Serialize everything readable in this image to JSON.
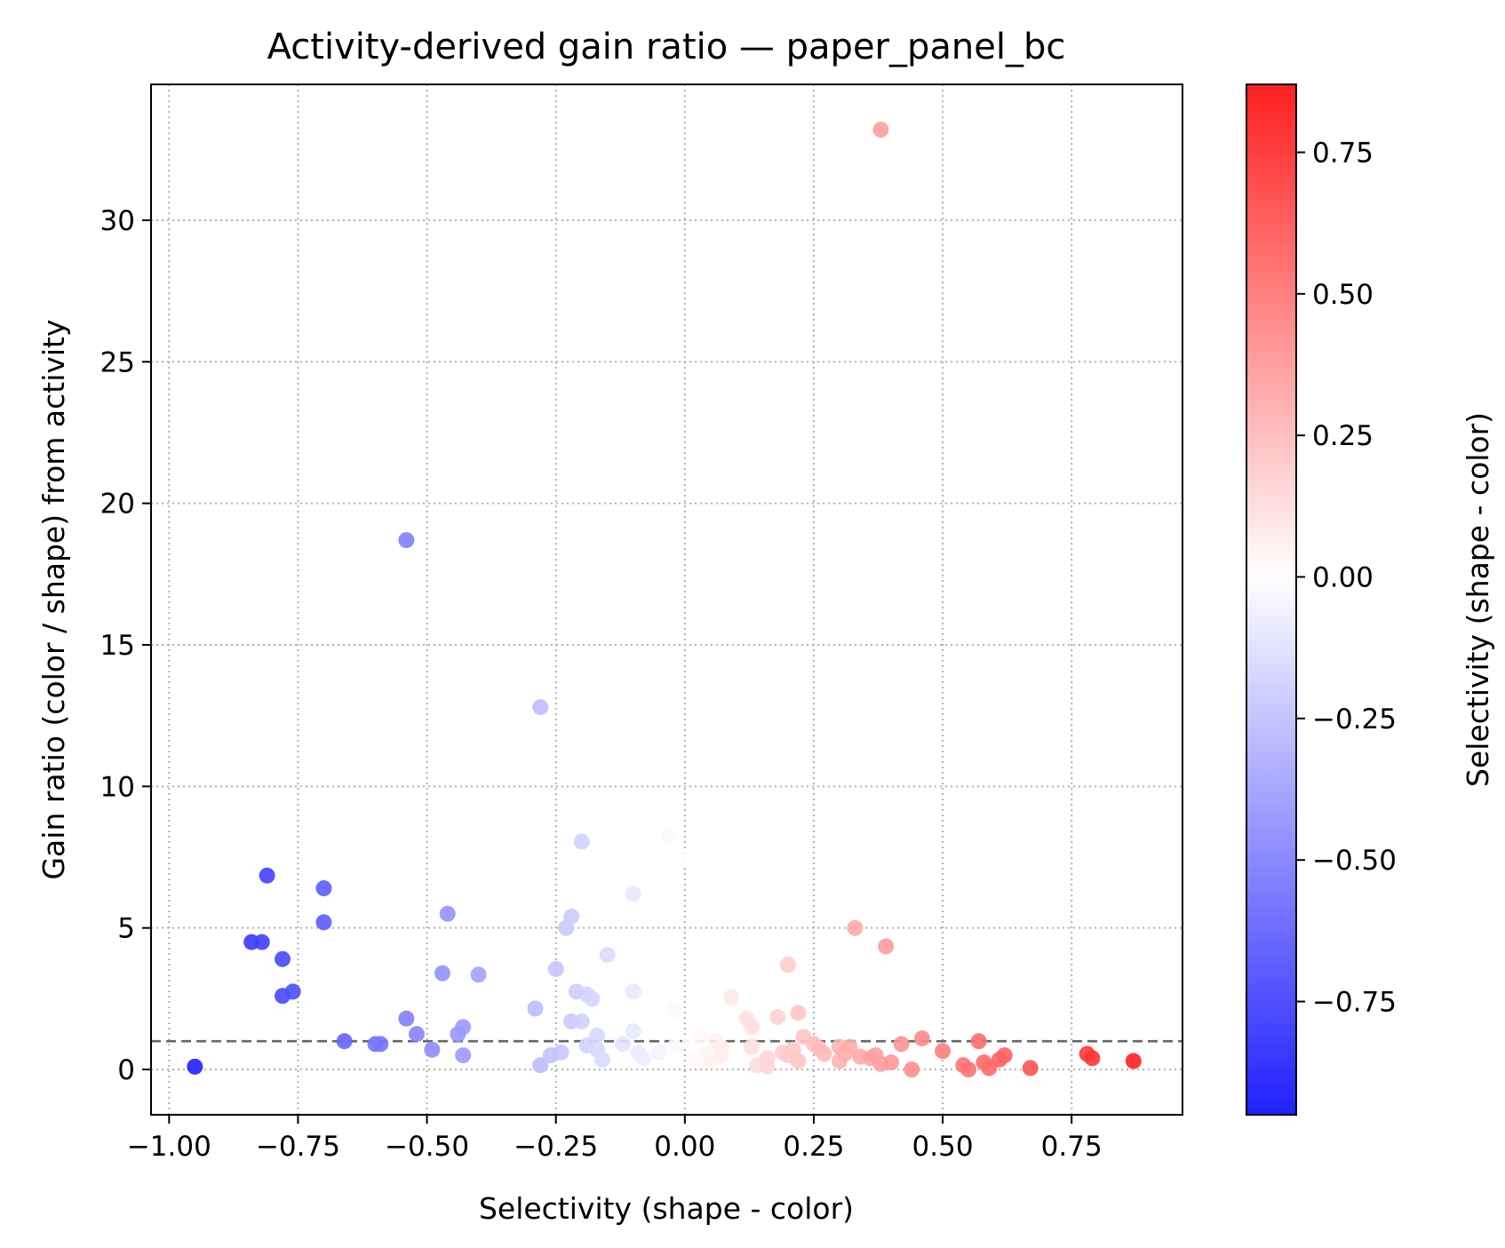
{
  "chart_data": {
    "type": "scatter",
    "title": "Activity-derived gain ratio — paper_panel_bc",
    "xlabel": "Selectivity (shape - color)",
    "ylabel": "Gain ratio (color / shape) from activity",
    "xlim": [
      -1.035,
      0.965
    ],
    "ylim": [
      -1.6,
      34.8
    ],
    "xticks": [
      -1.0,
      -0.75,
      -0.5,
      -0.25,
      0.0,
      0.25,
      0.5,
      0.75
    ],
    "xtick_labels": [
      "−1.00",
      "−0.75",
      "−0.50",
      "−0.25",
      "0.00",
      "0.25",
      "0.50",
      "0.75"
    ],
    "yticks": [
      0,
      5,
      10,
      15,
      20,
      25,
      30
    ],
    "ytick_labels": [
      "0",
      "5",
      "10",
      "15",
      "20",
      "25",
      "30"
    ],
    "grid": true,
    "reference_line": {
      "y": 1.0,
      "style": "dashed",
      "color": "#666666"
    },
    "colorbar": {
      "label": "Selectivity (shape - color)",
      "colormap": "bwr",
      "range": [
        -0.95,
        0.87
      ],
      "ticks": [
        -0.75,
        -0.5,
        -0.25,
        0.0,
        0.25,
        0.5,
        0.75
      ],
      "tick_labels": [
        "−0.75",
        "−0.50",
        "−0.25",
        "0.00",
        "0.25",
        "0.50",
        "0.75"
      ],
      "colors": [
        "#2020ff",
        "#ffffff",
        "#ff2020"
      ]
    },
    "points": [
      [
        -0.95,
        0.1
      ],
      [
        -0.84,
        4.5
      ],
      [
        -0.82,
        4.5
      ],
      [
        -0.81,
        6.85
      ],
      [
        -0.78,
        3.9
      ],
      [
        -0.78,
        2.6
      ],
      [
        -0.76,
        2.75
      ],
      [
        -0.7,
        6.4
      ],
      [
        -0.7,
        5.2
      ],
      [
        -0.66,
        1.0
      ],
      [
        -0.6,
        0.9
      ],
      [
        -0.59,
        0.9
      ],
      [
        -0.54,
        18.7
      ],
      [
        -0.54,
        1.8
      ],
      [
        -0.52,
        1.25
      ],
      [
        -0.49,
        0.7
      ],
      [
        -0.47,
        3.4
      ],
      [
        -0.46,
        5.5
      ],
      [
        -0.44,
        1.25
      ],
      [
        -0.43,
        1.5
      ],
      [
        -0.43,
        0.5
      ],
      [
        -0.4,
        3.35
      ],
      [
        -0.29,
        2.15
      ],
      [
        -0.28,
        12.8
      ],
      [
        -0.28,
        0.15
      ],
      [
        -0.26,
        0.5
      ],
      [
        -0.25,
        3.55
      ],
      [
        -0.24,
        0.6
      ],
      [
        -0.23,
        5.0
      ],
      [
        -0.22,
        5.4
      ],
      [
        -0.22,
        1.7
      ],
      [
        -0.21,
        2.75
      ],
      [
        -0.2,
        8.05
      ],
      [
        -0.2,
        1.7
      ],
      [
        -0.19,
        2.65
      ],
      [
        -0.19,
        0.85
      ],
      [
        -0.18,
        2.5
      ],
      [
        -0.17,
        0.7
      ],
      [
        -0.17,
        1.2
      ],
      [
        -0.16,
        0.35
      ],
      [
        -0.15,
        4.05
      ],
      [
        -0.12,
        0.9
      ],
      [
        -0.1,
        6.2
      ],
      [
        -0.1,
        2.75
      ],
      [
        -0.1,
        1.35
      ],
      [
        -0.09,
        0.6
      ],
      [
        -0.08,
        0.4
      ],
      [
        -0.05,
        0.6
      ],
      [
        -0.03,
        8.25
      ],
      [
        -0.02,
        0.8
      ],
      [
        -0.02,
        2.1
      ],
      [
        0.0,
        7.4
      ],
      [
        0.01,
        1.0
      ],
      [
        0.02,
        0.4
      ],
      [
        0.03,
        1.2
      ],
      [
        0.04,
        0.6
      ],
      [
        0.05,
        0.3
      ],
      [
        0.06,
        1.0
      ],
      [
        0.07,
        0.5
      ],
      [
        0.07,
        0.8
      ],
      [
        0.09,
        2.55
      ],
      [
        0.12,
        1.8
      ],
      [
        0.13,
        1.5
      ],
      [
        0.13,
        0.8
      ],
      [
        0.14,
        0.15
      ],
      [
        0.16,
        0.4
      ],
      [
        0.16,
        0.1
      ],
      [
        0.18,
        1.85
      ],
      [
        0.19,
        0.6
      ],
      [
        0.2,
        0.5
      ],
      [
        0.2,
        3.7
      ],
      [
        0.21,
        0.7
      ],
      [
        0.22,
        2.0
      ],
      [
        0.22,
        0.3
      ],
      [
        0.23,
        1.15
      ],
      [
        0.25,
        0.9
      ],
      [
        0.26,
        0.75
      ],
      [
        0.27,
        0.55
      ],
      [
        0.3,
        0.8
      ],
      [
        0.3,
        0.3
      ],
      [
        0.31,
        0.55
      ],
      [
        0.32,
        0.8
      ],
      [
        0.33,
        5.0
      ],
      [
        0.34,
        0.45
      ],
      [
        0.36,
        0.4
      ],
      [
        0.37,
        0.5
      ],
      [
        0.38,
        33.2
      ],
      [
        0.38,
        0.2
      ],
      [
        0.39,
        4.35
      ],
      [
        0.4,
        0.25
      ],
      [
        0.42,
        0.9
      ],
      [
        0.44,
        0.0
      ],
      [
        0.46,
        1.1
      ],
      [
        0.5,
        0.65
      ],
      [
        0.54,
        0.15
      ],
      [
        0.55,
        0.0
      ],
      [
        0.57,
        1.0
      ],
      [
        0.58,
        0.25
      ],
      [
        0.59,
        0.05
      ],
      [
        0.61,
        0.35
      ],
      [
        0.62,
        0.5
      ],
      [
        0.67,
        0.05
      ],
      [
        0.78,
        0.55
      ],
      [
        0.79,
        0.4
      ],
      [
        0.87,
        0.3
      ]
    ]
  }
}
